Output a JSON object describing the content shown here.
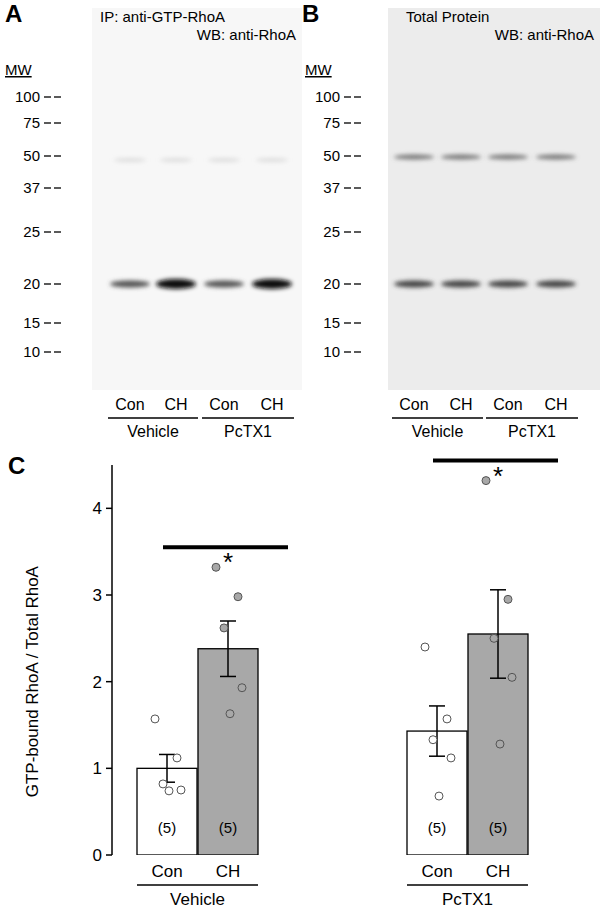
{
  "chart_data": {
    "type": "bar",
    "title": "C",
    "y_label": "GTP-bound RhoA / Total RhoA",
    "categories": [
      "Con",
      "CH",
      "Con",
      "CH"
    ],
    "groups": [
      "Vehicle",
      "PcTX1"
    ],
    "values": [
      1.0,
      2.38,
      1.43,
      2.55
    ],
    "errors": [
      0.16,
      0.32,
      0.29,
      0.51
    ],
    "points": [
      [
        1.57,
        1.12,
        0.82,
        0.75,
        0.74
      ],
      [
        3.32,
        2.98,
        2.62,
        1.93,
        1.63
      ],
      [
        2.4,
        1.57,
        1.33,
        1.12,
        0.68
      ],
      [
        4.32,
        2.95,
        2.5,
        2.05,
        1.28
      ]
    ],
    "n_labels": [
      "(5)",
      "(5)",
      "(5)",
      "(5)"
    ],
    "annotations": [
      "*",
      "*"
    ],
    "colors": [
      "#ffffff",
      "#a8a8a8",
      "#ffffff",
      "#a8a8a8"
    ],
    "ylim": [
      0,
      4.5
    ],
    "yticks": [
      0,
      1,
      2,
      3,
      4
    ],
    "grid": false
  },
  "blots": [
    {
      "label": "A",
      "title_lines": [
        "IP: anti-GTP-RhoA",
        "WB: anti-RhoA"
      ],
      "mw_label": "MW",
      "mw": [
        "100",
        "75",
        "50",
        "37",
        "25",
        "20",
        "15",
        "10"
      ],
      "lanes": [
        "Con",
        "CH",
        "Con",
        "CH"
      ],
      "groups": [
        "Vehicle",
        "PcTX1"
      ]
    },
    {
      "label": "B",
      "title_lines": [
        "Total Protein",
        "WB: anti-RhoA"
      ],
      "mw_label": "MW",
      "mw": [
        "100",
        "75",
        "50",
        "37",
        "25",
        "20",
        "15",
        "10"
      ],
      "lanes": [
        "Con",
        "CH",
        "Con",
        "CH"
      ],
      "groups": [
        "Vehicle",
        "PcTX1"
      ]
    }
  ]
}
